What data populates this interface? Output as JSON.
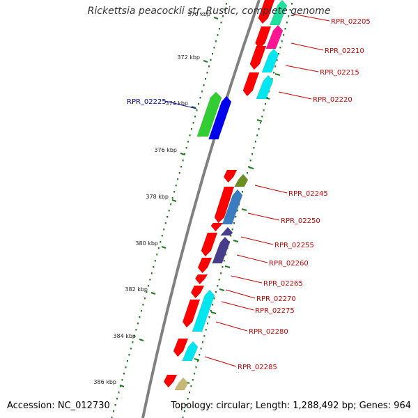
{
  "title": "Rickettsia peacockii str. Rustic, complete genome",
  "footer": {
    "accession": "Accession: NC_012730",
    "summary": "Topology: circular; Length: 1,288,492 bp; Genes: 964"
  },
  "scale": {
    "unit": "kbp",
    "labels": [
      "370 kbp",
      "372 kbp",
      "374 kbp",
      "376 kbp",
      "378 kbp",
      "380 kbp",
      "382 kbp",
      "384 kbp",
      "386 kbp"
    ]
  },
  "colors": {
    "backbone": "#808080",
    "forward_cds": "#ff0000",
    "reverse_cds": "#00e5ee",
    "label": "#cc0000",
    "selected_label": "#0000aa",
    "tick": "#1f7a1f"
  },
  "gene_labels": [
    {
      "id": "RPR_02205",
      "selected": false
    },
    {
      "id": "RPR_02210",
      "selected": false
    },
    {
      "id": "RPR_02215",
      "selected": false
    },
    {
      "id": "RPR_02220",
      "selected": false
    },
    {
      "id": "RPR_02225",
      "selected": true
    },
    {
      "id": "RPR_02245",
      "selected": false
    },
    {
      "id": "RPR_02250",
      "selected": false
    },
    {
      "id": "RPR_02255",
      "selected": false
    },
    {
      "id": "RPR_02260",
      "selected": false
    },
    {
      "id": "RPR_02265",
      "selected": false
    },
    {
      "id": "RPR_02270",
      "selected": false
    },
    {
      "id": "RPR_02275",
      "selected": false
    },
    {
      "id": "RPR_02280",
      "selected": false
    },
    {
      "id": "RPR_02285",
      "selected": false
    }
  ]
}
